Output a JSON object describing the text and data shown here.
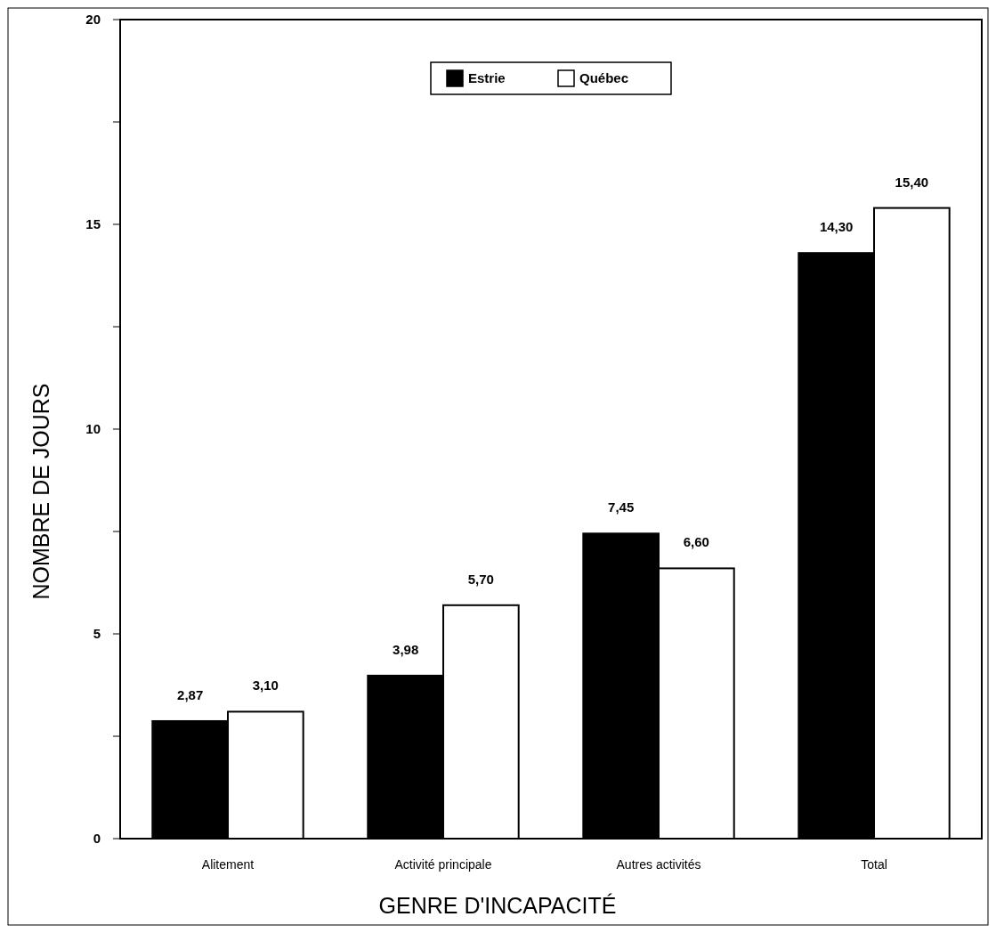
{
  "chart_data": {
    "type": "bar",
    "xlabel": "GENRE D'INCAPACITÉ",
    "ylabel": "NOMBRE DE JOURS",
    "categories": [
      "Alitement",
      "Activité principale",
      "Autres activités",
      "Total"
    ],
    "series": [
      {
        "name": "Estrie",
        "color": "#000000",
        "values": [
          2.87,
          3.98,
          7.45,
          14.3
        ],
        "value_labels": [
          "2,87",
          "3,98",
          "7,45",
          "14,30"
        ]
      },
      {
        "name": "Québec",
        "color": "#ffffff",
        "values": [
          3.1,
          5.7,
          6.6,
          15.4
        ],
        "value_labels": [
          "3,10",
          "5,70",
          "6,60",
          "15,40"
        ]
      }
    ],
    "ylim": [
      0,
      20
    ],
    "yticks": [
      0,
      {
        "value": 2.5,
        "label": null
      },
      5,
      {
        "value": 7.5,
        "label": null
      },
      10,
      {
        "value": 12.5,
        "label": null
      },
      15,
      {
        "value": 17.5,
        "label": null
      },
      20
    ],
    "grid": false,
    "legend": "top"
  }
}
